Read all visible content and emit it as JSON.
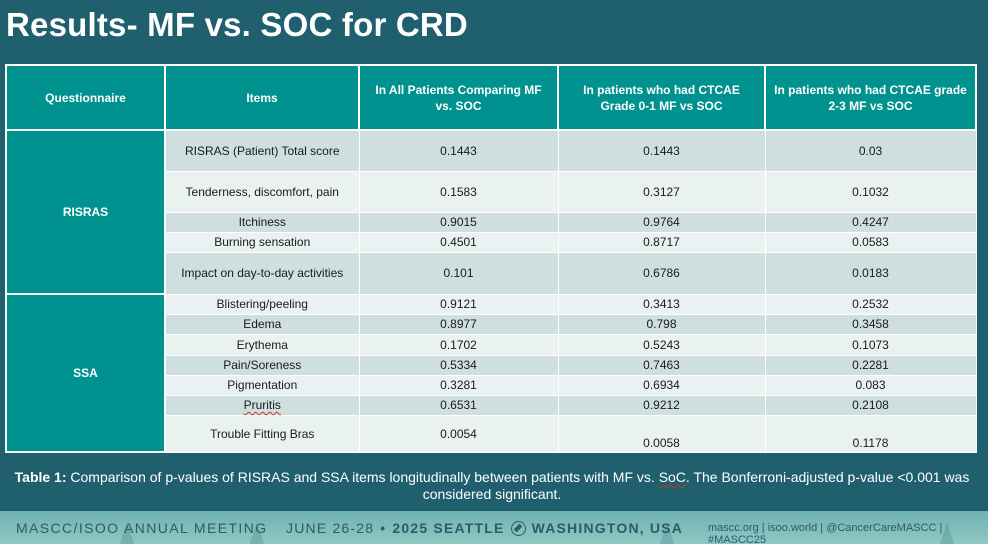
{
  "title": "Results- MF vs. SOC for CRD",
  "table": {
    "headers": [
      "Questionnaire",
      "Items",
      "In All Patients Comparing MF vs. SOC",
      "In patients who had CTCAE Grade 0-1 MF vs SOC",
      "In patients who had CTCAE grade 2-3 MF vs SOC"
    ],
    "groups": {
      "risras": "RISRAS",
      "ssa": "SSA"
    },
    "rows": [
      {
        "item": "RISRAS (Patient) Total score",
        "all": "0.1443",
        "g01": "0.1443",
        "g23": "0.03"
      },
      {
        "item": "Tenderness, discomfort, pain",
        "all": "0.1583",
        "g01": "0.3127",
        "g23": "0.1032"
      },
      {
        "item": "Itchiness",
        "all": "0.9015",
        "g01": "0.9764",
        "g23": "0.4247"
      },
      {
        "item": "Burning sensation",
        "all": "0.4501",
        "g01": "0.8717",
        "g23": "0.0583"
      },
      {
        "item": "Impact on day-to-day activities",
        "all": "0.101",
        "g01": "0.6786",
        "g23": "0.0183"
      },
      {
        "item": "Blistering/peeling",
        "all": "0.9121",
        "g01": "0.3413",
        "g23": "0.2532"
      },
      {
        "item": "Edema",
        "all": "0.8977",
        "g01": "0.798",
        "g23": "0.3458"
      },
      {
        "item": "Erythema",
        "all": "0.1702",
        "g01": "0.5243",
        "g23": "0.1073"
      },
      {
        "item": "Pain/Soreness",
        "all": "0.5334",
        "g01": "0.7463",
        "g23": "0.2281"
      },
      {
        "item": "Pigmentation",
        "all": "0.3281",
        "g01": "0.6934",
        "g23": "0.083"
      },
      {
        "item": "Pruritis",
        "all": "0.6531",
        "g01": "0.9212",
        "g23": "0.2108"
      },
      {
        "item": "Trouble Fitting Bras",
        "all": "0.0054",
        "g01": "0.0058",
        "g23": "0.1178"
      }
    ]
  },
  "caption": {
    "label": "Table 1:",
    "text_a": " Comparison of p-values of RISRAS and SSA items longitudinally between patients with MF vs. ",
    "soc": "SoC",
    "text_b": ". The Bonferroni-adjusted p-value <0.001 was considered significant."
  },
  "footer": {
    "meeting": "MASCC/ISOO ANNUAL MEETING",
    "dates": "JUNE 26-28",
    "bullet": "•",
    "year_city": "2025 SEATTLE",
    "state": "WASHINGTON, USA",
    "links": "mascc.org  |  isoo.world  |  @CancerCareMASCC  |  #MASCC25"
  },
  "colors": {
    "background": "#205f6e",
    "header_teal": "#00928e",
    "row_odd": "#cfdfe0",
    "row_even": "#e9f1f1"
  }
}
